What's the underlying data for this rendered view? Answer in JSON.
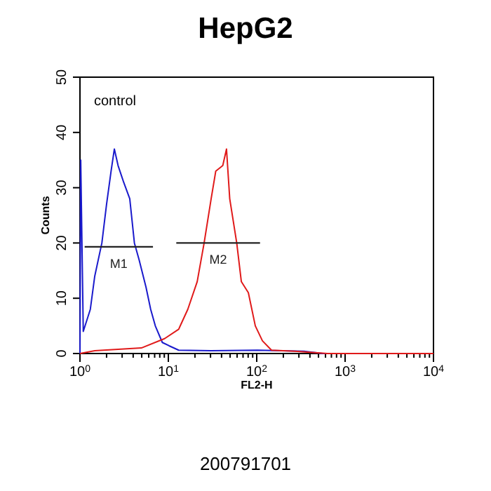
{
  "chart_data": {
    "type": "line",
    "title": "HepG2",
    "xlabel": "FL2-H",
    "ylabel": "Counts",
    "log": "x",
    "xlim": [
      1,
      10000
    ],
    "ylim": [
      0,
      50
    ],
    "xticks": [
      {
        "value": 1,
        "label": "10$^{0}$"
      },
      {
        "value": 2,
        "label": null
      },
      {
        "value": 3,
        "label": null
      },
      {
        "value": 4,
        "label": null
      },
      {
        "value": 5,
        "label": null
      },
      {
        "value": 6,
        "label": null
      },
      {
        "value": 7,
        "label": null
      },
      {
        "value": 8,
        "label": null
      },
      {
        "value": 9,
        "label": null
      },
      {
        "value": 10,
        "label": "10$^{1}$"
      },
      {
        "value": 20,
        "label": null
      },
      {
        "value": 30,
        "label": null
      },
      {
        "value": 40,
        "label": null
      },
      {
        "value": 50,
        "label": null
      },
      {
        "value": 60,
        "label": null
      },
      {
        "value": 70,
        "label": null
      },
      {
        "value": 80,
        "label": null
      },
      {
        "value": 90,
        "label": null
      },
      {
        "value": 100,
        "label": "10$^{2}$"
      },
      {
        "value": 200,
        "label": null
      },
      {
        "value": 300,
        "label": null
      },
      {
        "value": 400,
        "label": null
      },
      {
        "value": 500,
        "label": null
      },
      {
        "value": 600,
        "label": null
      },
      {
        "value": 700,
        "label": null
      },
      {
        "value": 800,
        "label": null
      },
      {
        "value": 900,
        "label": null
      },
      {
        "value": 1000,
        "label": "10$^{3}$"
      },
      {
        "value": 2000,
        "label": null
      },
      {
        "value": 3000,
        "label": null
      },
      {
        "value": 4000,
        "label": null
      },
      {
        "value": 5000,
        "label": null
      },
      {
        "value": 6000,
        "label": null
      },
      {
        "value": 7000,
        "label": null
      },
      {
        "value": 8000,
        "label": null
      },
      {
        "value": 9000,
        "label": null
      },
      {
        "value": 10000,
        "label": "10$^{4}$"
      }
    ],
    "yticks": [
      0,
      10,
      20,
      30,
      40,
      50
    ],
    "grid": false,
    "series": [
      {
        "color": "#1a1acc",
        "x": [
          1,
          1.02,
          1.09,
          1.31,
          1.47,
          1.77,
          2.0,
          2.25,
          2.45,
          2.7,
          3.12,
          3.66,
          4.13,
          4.66,
          5.59,
          6.31,
          7.12,
          8.55,
          10.2,
          13.1,
          30.5,
          102,
          344,
          559,
          10000
        ],
        "values": [
          0,
          35,
          4,
          8,
          14,
          20,
          27,
          33,
          37,
          34,
          31,
          28,
          20,
          17,
          12,
          8,
          5,
          2,
          1.4,
          0.6,
          0.5,
          0.6,
          0.4,
          0,
          0
        ]
      },
      {
        "color": "#e01a1a",
        "x": [
          1,
          1.47,
          4.95,
          9.07,
          13.1,
          16.6,
          21.2,
          25.4,
          30.5,
          34.4,
          41.3,
          45.5,
          49.5,
          59.4,
          67.0,
          80.4,
          96.4,
          116,
          147,
          270,
          631,
          10000
        ],
        "values": [
          0,
          0.5,
          1,
          2.7,
          4.4,
          8,
          13,
          20,
          28,
          33,
          34,
          37,
          28,
          20,
          13,
          11,
          5,
          2.3,
          0.6,
          0.4,
          0,
          0
        ]
      },
      {
        "name": "M1",
        "color": "#222222",
        "x": [
          1.13,
          6.7
        ],
        "values": [
          19.3,
          19.3
        ]
      },
      {
        "name": "M2",
        "color": "#222222",
        "x": [
          12.3,
          109
        ],
        "values": [
          20,
          20
        ]
      }
    ],
    "annotations": [
      "control",
      "200791701"
    ]
  }
}
